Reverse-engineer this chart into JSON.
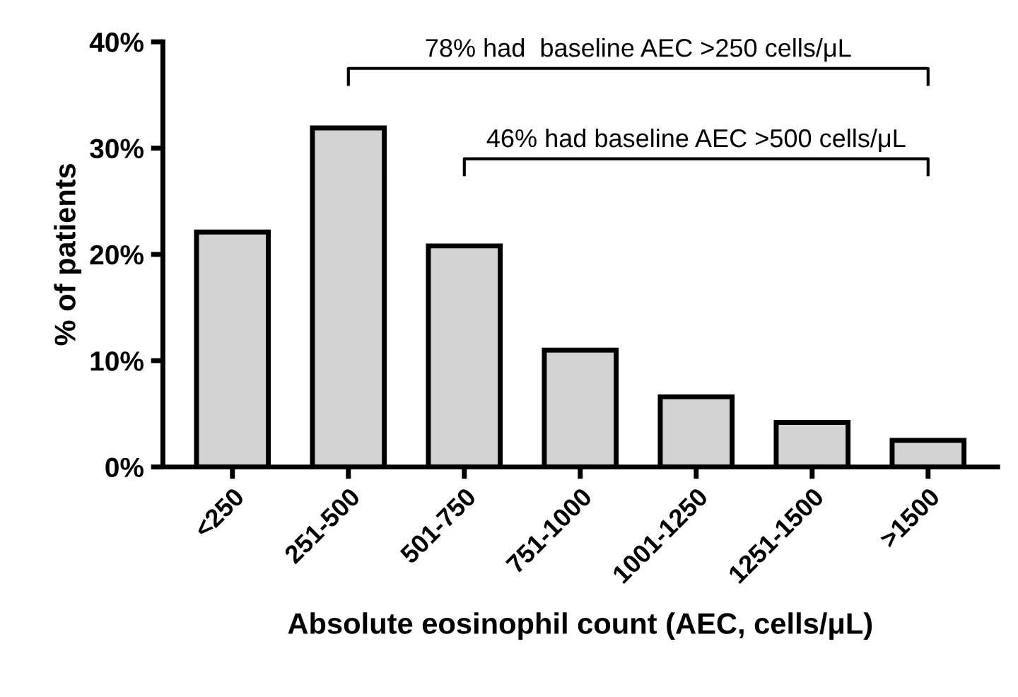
{
  "chart_data": {
    "type": "bar",
    "xlabel": "Absolute eosinophil count (AEC, cells/μL)",
    "ylabel": "% of patients",
    "categories": [
      "<250",
      "251-500",
      "501-750",
      "751-1000",
      "1001-1250",
      "1251-1500",
      ">1500"
    ],
    "values": [
      22.1,
      31.9,
      20.8,
      11.0,
      6.6,
      4.2,
      2.5
    ],
    "color": "#d3d3d3",
    "ylim": [
      0,
      40
    ],
    "yticks": [
      {
        "value": 0,
        "label": "0%"
      },
      {
        "value": 10,
        "label": "10%"
      },
      {
        "value": 20,
        "label": "20%"
      },
      {
        "value": 30,
        "label": "30%"
      },
      {
        "value": 40,
        "label": "40%"
      }
    ],
    "grid": false,
    "annotations": [
      "78% had  baseline AEC >250 cells/μL",
      "46% had baseline AEC >500 cells/μL"
    ]
  }
}
